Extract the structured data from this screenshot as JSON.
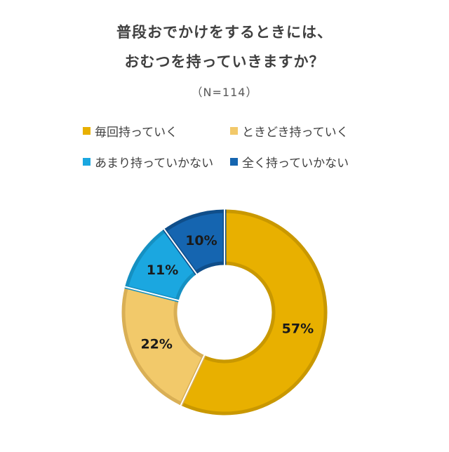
{
  "chart_data": {
    "type": "pie",
    "title_line1": "普段おでかけをするときには、",
    "title_line2": "おむつを持っていきますか？",
    "subtitle": "（N=114）",
    "categories": [
      "毎回持っていく",
      "ときどき持っていく",
      "あまり持っていかない",
      "全く持っていかない"
    ],
    "values": [
      57,
      22,
      11,
      10
    ],
    "labels": [
      "57%",
      "22%",
      "11%",
      "10%"
    ],
    "colors": [
      "#E8B000",
      "#F2C96A",
      "#1BA7E0",
      "#1565B0"
    ],
    "edge_colors": [
      "#C99800",
      "#D9AF55",
      "#1590C2",
      "#0F4E8A"
    ],
    "legend": "top",
    "style": "donut"
  }
}
